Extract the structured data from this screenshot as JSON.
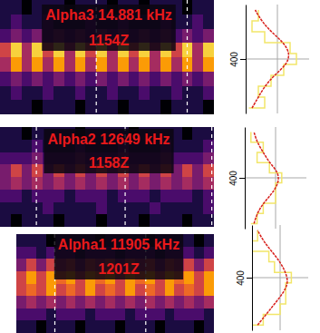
{
  "chart_data": [
    {
      "type": "heatmap",
      "title": "Alpha3 14.881 kHz",
      "subtitle": "1154Z",
      "xlim": [
        0,
        20
      ],
      "ylim": [
        350,
        450
      ],
      "color_range": [
        0,
        9
      ],
      "time_markers": [
        9,
        17.5
      ],
      "cells": [
        [
          1,
          1,
          0,
          1,
          1,
          1,
          0,
          1,
          1,
          1,
          0,
          1,
          1,
          0,
          1,
          1,
          1,
          0,
          1,
          1
        ],
        [
          1,
          2,
          1,
          1,
          2,
          1,
          1,
          1,
          2,
          1,
          1,
          2,
          1,
          1,
          1,
          2,
          1,
          1,
          2,
          1
        ],
        [
          2,
          3,
          2,
          3,
          2,
          3,
          2,
          3,
          2,
          3,
          2,
          3,
          2,
          3,
          2,
          3,
          2,
          3,
          2,
          3
        ],
        [
          5,
          8,
          4,
          8,
          5,
          8,
          4,
          8,
          5,
          8,
          4,
          8,
          5,
          8,
          4,
          8,
          5,
          8,
          4,
          8
        ],
        [
          4,
          7,
          4,
          7,
          4,
          7,
          4,
          7,
          4,
          7,
          4,
          7,
          4,
          7,
          4,
          7,
          4,
          7,
          4,
          7
        ],
        [
          2,
          3,
          2,
          3,
          2,
          3,
          2,
          3,
          2,
          3,
          2,
          3,
          2,
          3,
          2,
          3,
          2,
          3,
          2,
          3
        ],
        [
          1,
          2,
          1,
          1,
          2,
          1,
          1,
          2,
          1,
          1,
          2,
          1,
          1,
          2,
          1,
          1,
          2,
          1,
          1,
          2
        ],
        [
          1,
          1,
          1,
          0,
          1,
          1,
          1,
          0,
          1,
          1,
          1,
          0,
          1,
          1,
          1,
          0,
          1,
          1,
          1,
          0
        ]
      ],
      "spectrum": {
        "type": "line",
        "xlim": [
          0,
          10
        ],
        "ylim": [
          350,
          450
        ],
        "yticks": [
          400
        ],
        "grid": true,
        "y": [
          355,
          365,
          375,
          385,
          395,
          405,
          415,
          425,
          435,
          445
        ],
        "raw": [
          0.5,
          3,
          2,
          4,
          6,
          8,
          7,
          3,
          1,
          2
        ],
        "fit": [
          1,
          2,
          3,
          4.5,
          6.5,
          7,
          6,
          4,
          2.5,
          1.5
        ]
      }
    },
    {
      "type": "heatmap",
      "title": "Alpha2 12649 kHz",
      "subtitle": "1158Z",
      "xlim": [
        0,
        20
      ],
      "ylim": [
        350,
        450
      ],
      "color_range": [
        0,
        9
      ],
      "time_markers": [
        3.4,
        11.7,
        19.8
      ],
      "cells": [
        [
          1,
          1,
          0,
          1,
          1,
          1,
          1,
          0,
          1,
          1,
          1,
          1,
          0,
          1,
          1,
          1,
          1,
          0,
          1,
          1
        ],
        [
          1,
          1,
          1,
          2,
          1,
          1,
          1,
          2,
          1,
          1,
          1,
          2,
          1,
          1,
          1,
          2,
          1,
          1,
          1,
          2
        ],
        [
          2,
          2,
          2,
          3,
          2,
          2,
          2,
          3,
          2,
          2,
          2,
          3,
          2,
          2,
          2,
          3,
          2,
          2,
          2,
          3
        ],
        [
          3,
          5,
          3,
          5,
          3,
          5,
          3,
          5,
          3,
          5,
          3,
          5,
          3,
          5,
          3,
          5,
          3,
          5,
          3,
          5
        ],
        [
          3,
          4,
          3,
          4,
          3,
          4,
          3,
          4,
          3,
          4,
          3,
          4,
          3,
          4,
          3,
          4,
          3,
          4,
          3,
          4
        ],
        [
          2,
          2,
          1,
          2,
          2,
          2,
          1,
          2,
          2,
          2,
          1,
          2,
          2,
          2,
          1,
          2,
          2,
          2,
          1,
          2
        ],
        [
          1,
          1,
          1,
          1,
          2,
          1,
          1,
          1,
          1,
          2,
          1,
          1,
          1,
          1,
          2,
          1,
          1,
          1,
          1,
          2
        ],
        [
          1,
          0,
          1,
          1,
          1,
          0,
          1,
          1,
          1,
          0,
          1,
          1,
          1,
          0,
          1,
          1,
          1,
          0,
          1,
          1
        ]
      ],
      "spectrum": {
        "type": "line",
        "xlim": [
          0,
          10
        ],
        "ylim": [
          350,
          450
        ],
        "yticks": [
          400
        ],
        "grid": true,
        "y": [
          355,
          365,
          375,
          385,
          395,
          405,
          415,
          425,
          435,
          445
        ],
        "raw": [
          1,
          2,
          3,
          5,
          5,
          6,
          4,
          2,
          3,
          1
        ],
        "fit": [
          1.5,
          2,
          3,
          4.5,
          5.5,
          5.5,
          4,
          3,
          2,
          1.5
        ]
      }
    },
    {
      "type": "heatmap",
      "title": "Alpha1 11905 kHz",
      "subtitle": "1201Z",
      "xlim": [
        0,
        20
      ],
      "ylim": [
        350,
        450
      ],
      "color_range": [
        0,
        9
      ],
      "time_markers": [
        3.9,
        13.1
      ],
      "cells": [
        [
          1,
          1,
          1,
          0,
          1,
          1,
          1,
          1,
          0,
          1,
          1,
          1,
          1,
          0,
          1,
          1,
          1,
          1,
          0,
          1
        ],
        [
          2,
          2,
          1,
          2,
          2,
          2,
          1,
          2,
          2,
          2,
          1,
          2,
          2,
          2,
          1,
          2,
          2,
          2,
          1,
          2
        ],
        [
          3,
          5,
          3,
          5,
          4,
          5,
          3,
          5,
          4,
          5,
          3,
          5,
          4,
          5,
          3,
          5,
          4,
          5,
          3,
          5
        ],
        [
          5,
          7,
          5,
          7,
          6,
          7,
          5,
          7,
          6,
          7,
          5,
          7,
          6,
          7,
          5,
          7,
          6,
          7,
          5,
          7
        ],
        [
          5,
          6,
          5,
          7,
          5,
          6,
          5,
          7,
          5,
          6,
          5,
          7,
          5,
          6,
          5,
          7,
          5,
          6,
          5,
          7
        ],
        [
          3,
          4,
          3,
          4,
          3,
          4,
          3,
          4,
          3,
          4,
          3,
          4,
          3,
          4,
          3,
          4,
          3,
          4,
          3,
          4
        ],
        [
          2,
          2,
          2,
          1,
          2,
          2,
          2,
          1,
          2,
          2,
          2,
          1,
          2,
          2,
          2,
          1,
          2,
          2,
          2,
          1
        ],
        [
          1,
          1,
          0,
          1,
          1,
          1,
          0,
          1,
          1,
          1,
          0,
          1,
          1,
          1,
          0,
          1,
          1,
          1,
          0,
          1
        ]
      ],
      "spectrum": {
        "type": "line",
        "xlim": [
          0,
          10
        ],
        "ylim": [
          350,
          450
        ],
        "yticks": [
          400
        ],
        "grid": true,
        "y": [
          355,
          365,
          375,
          385,
          395,
          405,
          415,
          425,
          435,
          445
        ],
        "raw": [
          0,
          2,
          5,
          6,
          6,
          7,
          4,
          3,
          0,
          1
        ],
        "fit": [
          1,
          2.5,
          4,
          5.5,
          6.5,
          6,
          5,
          3.5,
          2,
          1
        ]
      }
    }
  ]
}
